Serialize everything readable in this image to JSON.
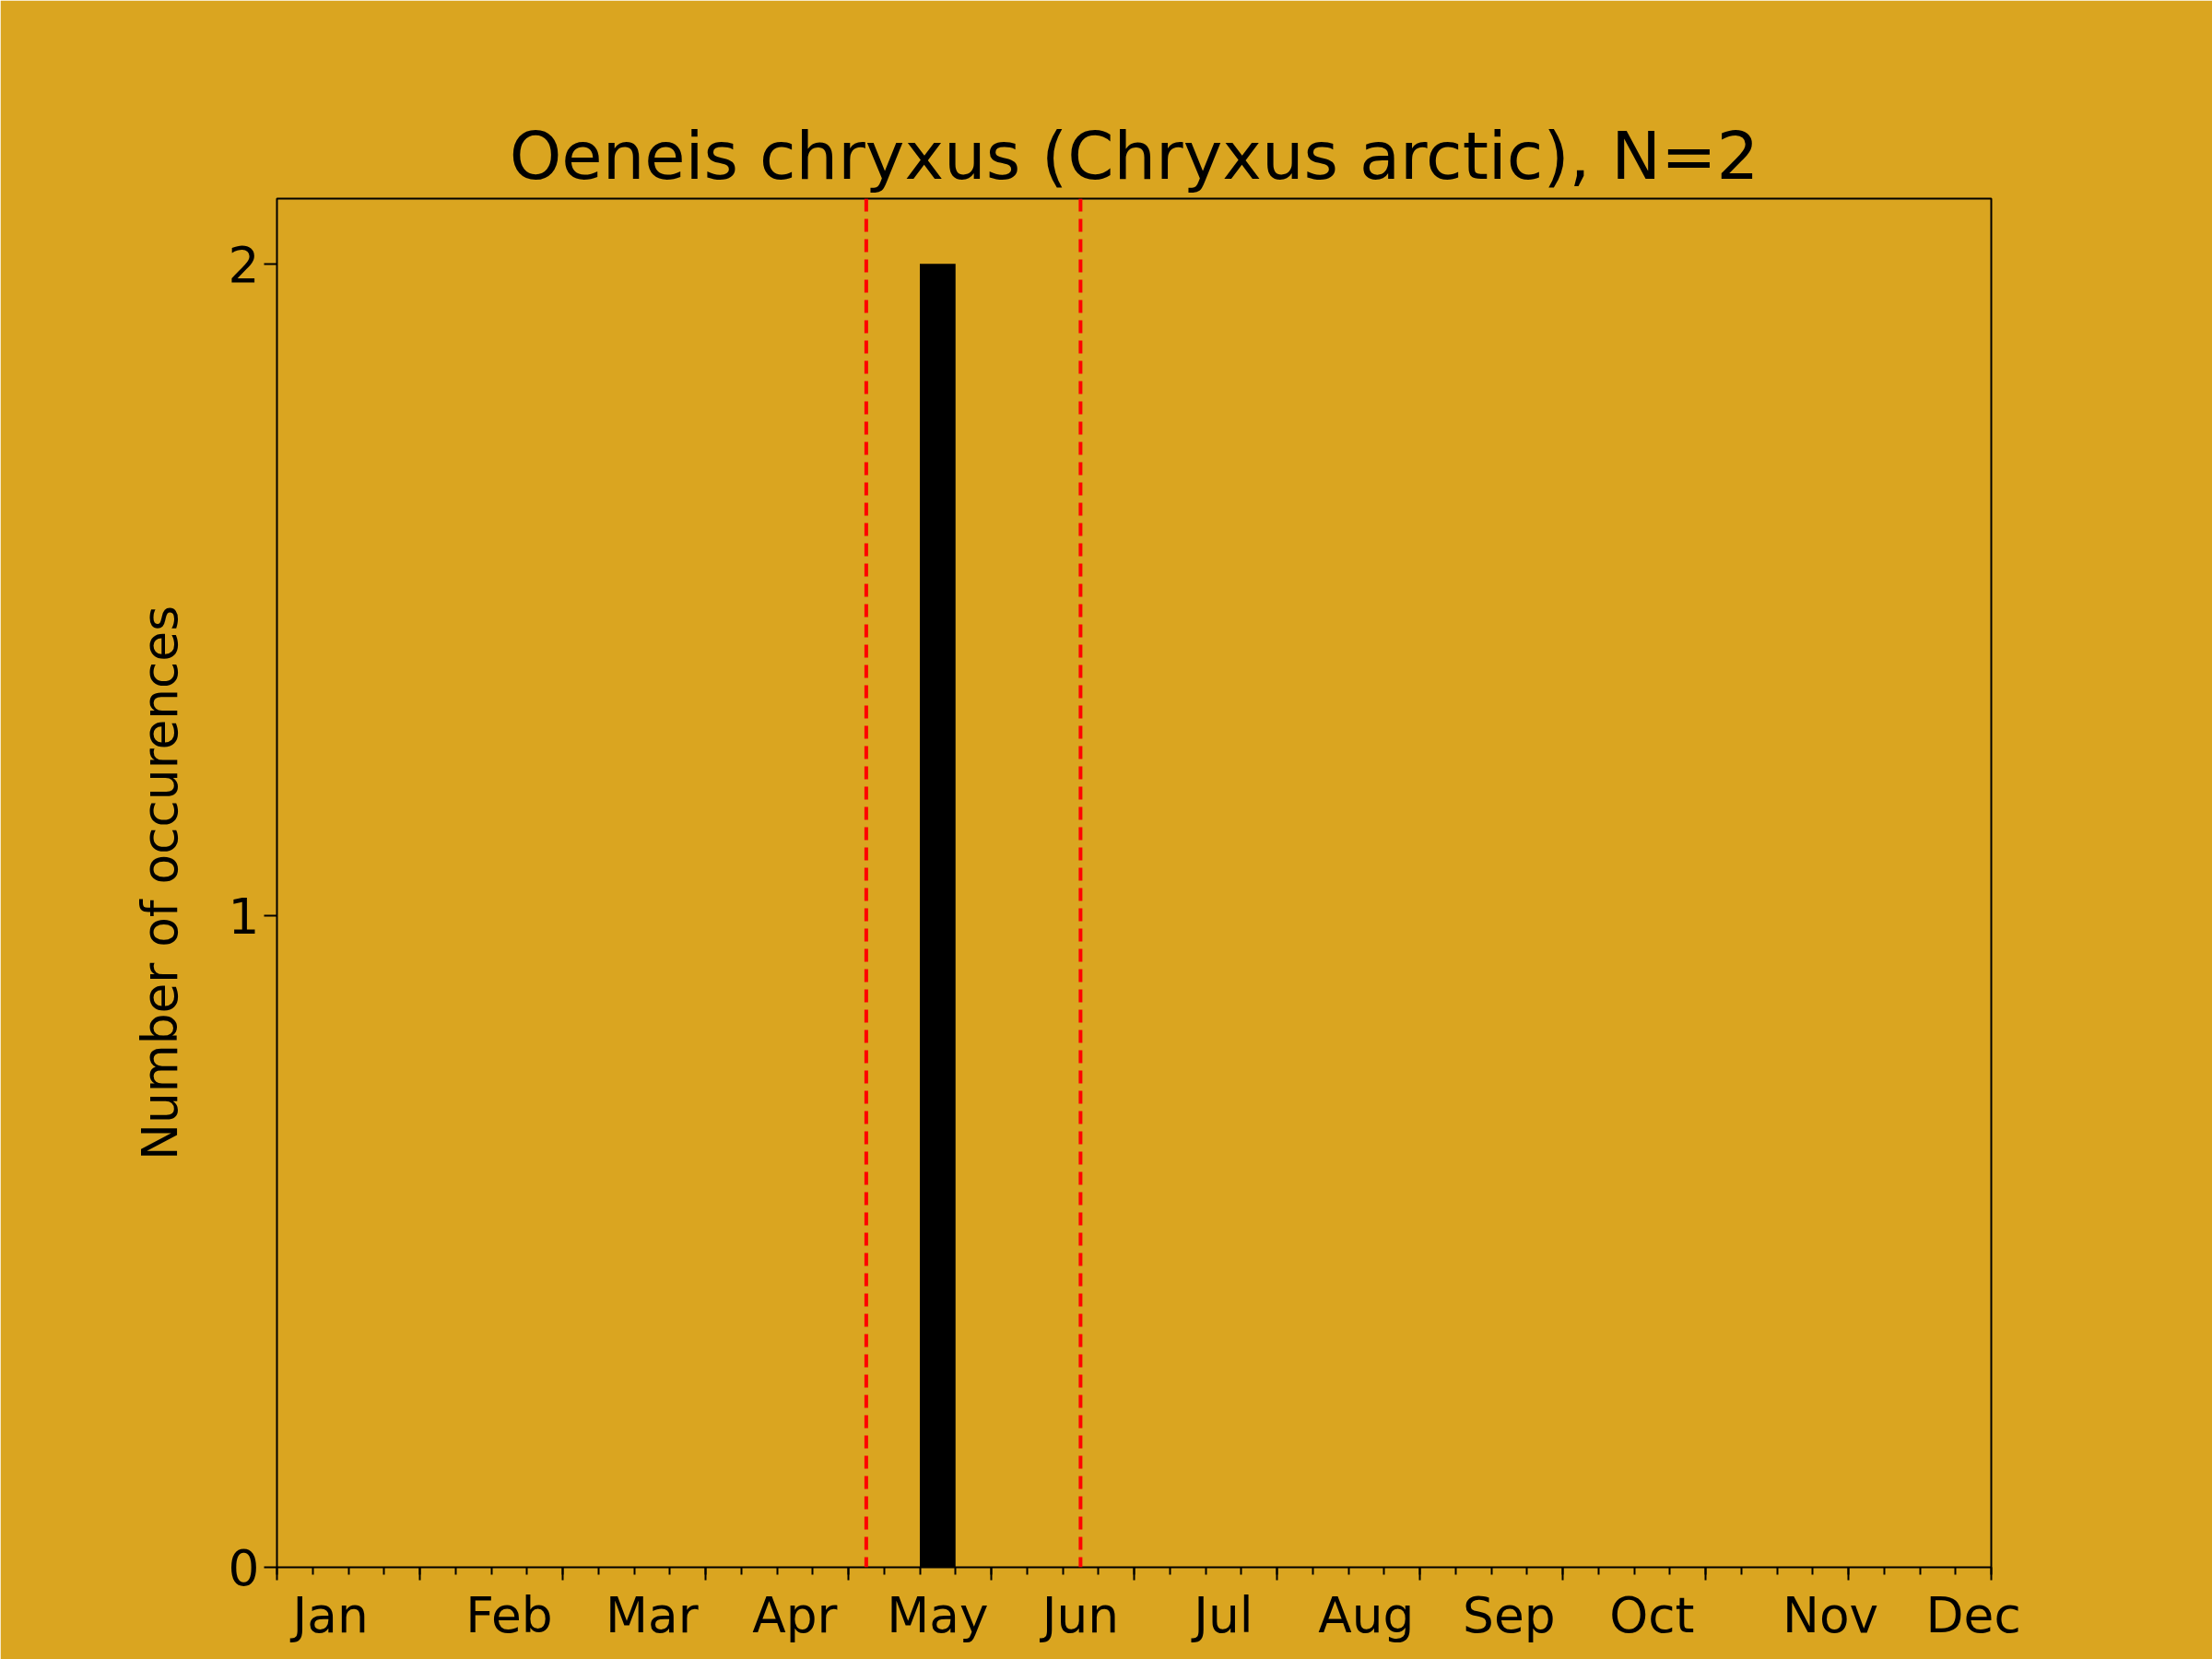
{
  "chart_data": {
    "type": "bar",
    "title": "Oeneis chryxus (Chryxus arctic), N=2",
    "ylabel": "Number of occurences",
    "categories": [
      null,
      "Jan",
      null,
      null,
      null,
      null,
      "Feb",
      null,
      null,
      null,
      "Mar",
      null,
      null,
      null,
      "Apr",
      null,
      null,
      null,
      "May",
      null,
      null,
      null,
      "Jun",
      null,
      null,
      null,
      "Jul",
      null,
      null,
      null,
      "Aug",
      null,
      null,
      null,
      "Sep",
      null,
      null,
      null,
      "Oct",
      null,
      null,
      null,
      null,
      "Nov",
      null,
      null,
      null,
      "Dec"
    ],
    "values": [
      0,
      0,
      0,
      0,
      0,
      0,
      0,
      0,
      0,
      0,
      0,
      0,
      0,
      0,
      0,
      0,
      0,
      0,
      2,
      0,
      0,
      0,
      0,
      0,
      0,
      0,
      0,
      0,
      0,
      0,
      0,
      0,
      0,
      0,
      0,
      0,
      0,
      0,
      0,
      0,
      0,
      0,
      0,
      0,
      0,
      0,
      0,
      0
    ],
    "color": "#000000",
    "ylim": [
      0,
      2.1
    ],
    "yticks": [
      0,
      1,
      2
    ]
  }
}
